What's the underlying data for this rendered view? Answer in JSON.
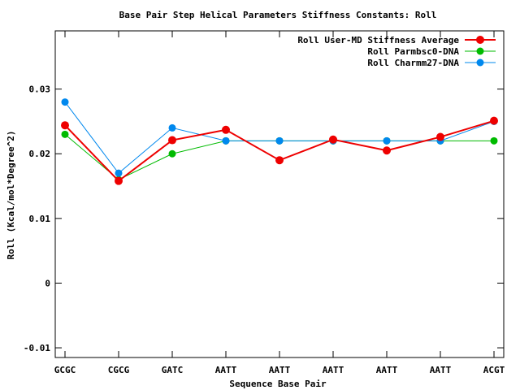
{
  "chart_data": {
    "type": "line",
    "title": "Base Pair Step Helical Parameters Stiffness Constants: Roll",
    "xlabel": "Sequence Base Pair",
    "ylabel": "Roll (Kcal/mol*Degree^2)",
    "categories": [
      "GCGC",
      "CGCG",
      "GATC",
      "AATT",
      "AATT",
      "AATT",
      "AATT",
      "AATT",
      "ACGT"
    ],
    "ylim": [
      -0.0115,
      0.039
    ],
    "yticks": [
      -0.01,
      0,
      0.01,
      0.02,
      0.03
    ],
    "ytick_labels": [
      "-0.01",
      "0",
      "0.01",
      "0.02",
      "0.03"
    ],
    "legend_position": "top-right",
    "grid": false,
    "series": [
      {
        "name": "Roll User-MD Stiffness Average",
        "color": "#ee0000",
        "values": [
          0.0244,
          0.0158,
          0.0221,
          0.0237,
          0.019,
          0.0222,
          0.0205,
          0.0226,
          0.0251
        ]
      },
      {
        "name": "Roll Parmbsc0-DNA",
        "color": "#00bb00",
        "values": [
          0.023,
          0.016,
          0.02,
          0.022,
          0.022,
          0.022,
          0.022,
          0.022,
          0.022
        ]
      },
      {
        "name": "Roll Charmm27-DNA",
        "color": "#0088ee",
        "values": [
          0.028,
          0.017,
          0.024,
          0.022,
          0.022,
          0.022,
          0.022,
          0.022,
          0.025
        ]
      }
    ]
  }
}
